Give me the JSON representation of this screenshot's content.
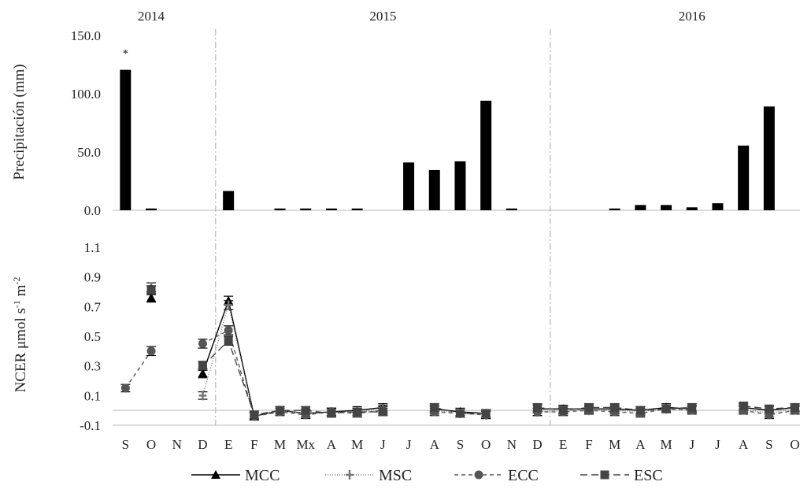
{
  "chart_data": [
    {
      "type": "bar",
      "ylabel": "Precipitación (mm)",
      "ylim": [
        0,
        150
      ],
      "yticks": [
        "0.0",
        "50.0",
        "100.0",
        "150.0"
      ],
      "year_labels": [
        "2014",
        "2015",
        "2016"
      ],
      "annotation": "*",
      "categories": [
        "S",
        "O",
        "N",
        "D",
        "E",
        "F",
        "M",
        "Mx",
        "A",
        "M",
        "J",
        "J",
        "A",
        "S",
        "O",
        "N",
        "D",
        "E",
        "F",
        "M",
        "A",
        "M",
        "J",
        "J",
        "A",
        "S",
        "O"
      ],
      "values": [
        120.5,
        1.5,
        0,
        0,
        16.5,
        0,
        1.5,
        1.5,
        1.5,
        1.5,
        0,
        41,
        34.5,
        42,
        94,
        1.5,
        0,
        0,
        0,
        1.5,
        4.5,
        4.5,
        2.5,
        6,
        55.5,
        89,
        0
      ],
      "color": "#000000"
    },
    {
      "type": "line",
      "ylabel": "NCER μmol s-1 m-2",
      "ylim": [
        -0.1,
        1.1
      ],
      "yticks": [
        "-0.1",
        "0.1",
        "0.3",
        "0.5",
        "0.7",
        "0.9",
        "1.1"
      ],
      "categories": [
        "S",
        "O",
        "N",
        "D",
        "E",
        "F",
        "M",
        "Mx",
        "A",
        "M",
        "J",
        "J",
        "A",
        "S",
        "O",
        "N",
        "D",
        "E",
        "F",
        "M",
        "A",
        "M",
        "J",
        "J",
        "A",
        "S",
        "O"
      ],
      "series": [
        {
          "name": "MCC",
          "marker": "triangle",
          "dash": "solid",
          "color": "#000000",
          "values": [
            null,
            0.76,
            null,
            0.25,
            0.74,
            -0.04,
            0.0,
            -0.02,
            -0.01,
            0.0,
            0.02,
            null,
            0.01,
            -0.01,
            -0.02,
            null,
            0.01,
            0.01,
            0.01,
            0.01,
            0.0,
            0.02,
            0.01,
            null,
            0.02,
            0.0,
            0.02
          ]
        },
        {
          "name": "MSC",
          "marker": "plus",
          "dash": "dotted",
          "color": "#777777",
          "values": [
            null,
            0.83,
            null,
            0.1,
            0.71,
            -0.04,
            0.0,
            -0.02,
            -0.01,
            -0.01,
            0.01,
            null,
            0.0,
            -0.02,
            -0.03,
            null,
            -0.01,
            0.0,
            0.0,
            0.0,
            -0.01,
            0.01,
            0.01,
            null,
            0.01,
            -0.02,
            0.01
          ]
        },
        {
          "name": "ECC",
          "marker": "circle",
          "dash": "dashed",
          "color": "#555555",
          "values": [
            0.15,
            0.4,
            null,
            0.45,
            0.54,
            -0.04,
            -0.01,
            -0.03,
            -0.01,
            -0.02,
            0.0,
            null,
            -0.01,
            -0.02,
            -0.03,
            null,
            -0.01,
            -0.01,
            0.0,
            -0.01,
            -0.02,
            0.01,
            0.0,
            null,
            0.0,
            -0.03,
            0.0
          ]
        },
        {
          "name": "ESC",
          "marker": "square",
          "dash": "longdash",
          "color": "#444444",
          "values": [
            null,
            0.81,
            null,
            0.3,
            0.47,
            -0.03,
            0.0,
            0.0,
            -0.02,
            -0.01,
            -0.01,
            null,
            0.02,
            -0.02,
            -0.02,
            null,
            0.02,
            0.0,
            0.02,
            0.02,
            0.0,
            0.01,
            0.02,
            null,
            0.03,
            0.01,
            0.02
          ]
        }
      ]
    }
  ]
}
